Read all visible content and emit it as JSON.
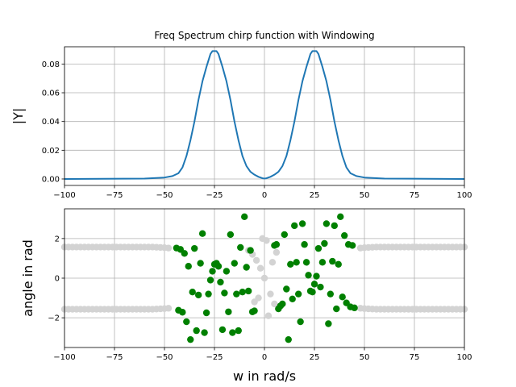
{
  "chart_data": [
    {
      "type": "line",
      "title": "Freq Spectrum chirp function with Windowing",
      "xlabel": "",
      "ylabel": "|Y|",
      "xlim": [
        -100,
        100
      ],
      "ylim": [
        -0.0045,
        0.092
      ],
      "xticks": [
        -100,
        -75,
        -50,
        -25,
        0,
        25,
        50,
        75,
        100
      ],
      "yticks": [
        0.0,
        0.02,
        0.04,
        0.06,
        0.08
      ],
      "ytick_labels": [
        "0.00",
        "0.02",
        "0.04",
        "0.06",
        "0.08"
      ],
      "grid": true,
      "series": [
        {
          "color": "#1f77b4",
          "x": [
            -100,
            -60,
            -50,
            -46,
            -43,
            -41,
            -39,
            -37,
            -35,
            -33,
            -31,
            -29,
            -27,
            -26,
            -25,
            -24,
            -23,
            -21,
            -19,
            -17,
            -15,
            -13,
            -11,
            -9,
            -7,
            -5,
            -3,
            -1,
            0,
            1,
            3,
            5,
            7,
            9,
            11,
            13,
            15,
            17,
            19,
            21,
            23,
            24,
            25,
            26,
            27,
            29,
            31,
            33,
            35,
            37,
            39,
            41,
            43,
            46,
            50,
            60,
            100
          ],
          "y": [
            0.0,
            0.0003,
            0.001,
            0.002,
            0.004,
            0.008,
            0.016,
            0.027,
            0.04,
            0.055,
            0.068,
            0.078,
            0.087,
            0.089,
            0.089,
            0.089,
            0.087,
            0.078,
            0.068,
            0.055,
            0.04,
            0.027,
            0.016,
            0.009,
            0.005,
            0.003,
            0.0015,
            0.0005,
            0.0003,
            0.0005,
            0.0015,
            0.003,
            0.005,
            0.009,
            0.016,
            0.027,
            0.04,
            0.055,
            0.068,
            0.078,
            0.087,
            0.089,
            0.089,
            0.089,
            0.087,
            0.078,
            0.068,
            0.055,
            0.04,
            0.027,
            0.016,
            0.008,
            0.004,
            0.002,
            0.001,
            0.0003,
            0.0
          ]
        }
      ]
    },
    {
      "type": "scatter",
      "title": "",
      "xlabel": "w in rad/s",
      "ylabel": "angle in rad",
      "xlim": [
        -100,
        100
      ],
      "ylim": [
        -3.5,
        3.5
      ],
      "xticks": [
        -100,
        -75,
        -50,
        -25,
        0,
        25,
        50,
        75,
        100
      ],
      "yticks": [
        -2,
        0,
        2
      ],
      "ytick_labels": [
        "−2",
        "0",
        "2"
      ],
      "grid": true,
      "series": [
        {
          "color": "#d3d3d3",
          "points": [
            [
              -100,
              1.57
            ],
            [
              -98,
              1.57
            ],
            [
              -96,
              1.57
            ],
            [
              -94,
              1.57
            ],
            [
              -92,
              1.57
            ],
            [
              -90,
              1.57
            ],
            [
              -88,
              1.57
            ],
            [
              -86,
              1.57
            ],
            [
              -84,
              1.57
            ],
            [
              -82,
              1.57
            ],
            [
              -80,
              1.57
            ],
            [
              -78,
              1.57
            ],
            [
              -76,
              1.57
            ],
            [
              -74,
              1.57
            ],
            [
              -72,
              1.57
            ],
            [
              -70,
              1.57
            ],
            [
              -68,
              1.57
            ],
            [
              -66,
              1.57
            ],
            [
              -64,
              1.57
            ],
            [
              -62,
              1.57
            ],
            [
              -60,
              1.57
            ],
            [
              -58,
              1.57
            ],
            [
              -56,
              1.57
            ],
            [
              -54,
              1.56
            ],
            [
              -52,
              1.55
            ],
            [
              -50,
              1.54
            ],
            [
              -48,
              1.52
            ],
            [
              -100,
              -1.57
            ],
            [
              -98,
              -1.57
            ],
            [
              -96,
              -1.57
            ],
            [
              -94,
              -1.57
            ],
            [
              -92,
              -1.57
            ],
            [
              -90,
              -1.57
            ],
            [
              -88,
              -1.57
            ],
            [
              -86,
              -1.57
            ],
            [
              -84,
              -1.57
            ],
            [
              -82,
              -1.57
            ],
            [
              -80,
              -1.57
            ],
            [
              -78,
              -1.57
            ],
            [
              -76,
              -1.57
            ],
            [
              -74,
              -1.57
            ],
            [
              -72,
              -1.57
            ],
            [
              -70,
              -1.57
            ],
            [
              -68,
              -1.57
            ],
            [
              -66,
              -1.57
            ],
            [
              -64,
              -1.57
            ],
            [
              -62,
              -1.57
            ],
            [
              -60,
              -1.57
            ],
            [
              -58,
              -1.57
            ],
            [
              -56,
              -1.57
            ],
            [
              -54,
              -1.56
            ],
            [
              -52,
              -1.55
            ],
            [
              -50,
              -1.54
            ],
            [
              -48,
              -1.52
            ],
            [
              48,
              1.52
            ],
            [
              50,
              1.54
            ],
            [
              52,
              1.55
            ],
            [
              54,
              1.56
            ],
            [
              56,
              1.57
            ],
            [
              58,
              1.57
            ],
            [
              60,
              1.57
            ],
            [
              62,
              1.57
            ],
            [
              64,
              1.57
            ],
            [
              66,
              1.57
            ],
            [
              68,
              1.57
            ],
            [
              70,
              1.57
            ],
            [
              72,
              1.57
            ],
            [
              74,
              1.57
            ],
            [
              76,
              1.57
            ],
            [
              78,
              1.57
            ],
            [
              80,
              1.57
            ],
            [
              82,
              1.57
            ],
            [
              84,
              1.57
            ],
            [
              86,
              1.57
            ],
            [
              88,
              1.57
            ],
            [
              90,
              1.57
            ],
            [
              92,
              1.57
            ],
            [
              94,
              1.57
            ],
            [
              96,
              1.57
            ],
            [
              98,
              1.57
            ],
            [
              100,
              1.57
            ],
            [
              48,
              -1.52
            ],
            [
              50,
              -1.54
            ],
            [
              52,
              -1.55
            ],
            [
              54,
              -1.56
            ],
            [
              56,
              -1.57
            ],
            [
              58,
              -1.57
            ],
            [
              60,
              -1.57
            ],
            [
              62,
              -1.57
            ],
            [
              64,
              -1.57
            ],
            [
              66,
              -1.57
            ],
            [
              68,
              -1.57
            ],
            [
              70,
              -1.57
            ],
            [
              72,
              -1.57
            ],
            [
              74,
              -1.57
            ],
            [
              76,
              -1.57
            ],
            [
              78,
              -1.57
            ],
            [
              80,
              -1.57
            ],
            [
              82,
              -1.57
            ],
            [
              84,
              -1.57
            ],
            [
              86,
              -1.57
            ],
            [
              88,
              -1.57
            ],
            [
              90,
              -1.57
            ],
            [
              92,
              -1.57
            ],
            [
              94,
              -1.57
            ],
            [
              96,
              -1.57
            ],
            [
              98,
              -1.57
            ],
            [
              100,
              -1.57
            ],
            [
              -6,
              1.2
            ],
            [
              -5,
              -1.2
            ],
            [
              -4,
              0.9
            ],
            [
              -3,
              -1.0
            ],
            [
              -2,
              0.5
            ],
            [
              -1,
              2.0
            ],
            [
              0,
              0.0
            ],
            [
              1,
              1.9
            ],
            [
              2,
              -1.9
            ],
            [
              3,
              -0.8
            ],
            [
              4,
              0.8
            ],
            [
              5,
              -1.3
            ],
            [
              6,
              1.3
            ],
            [
              -8,
              1.4
            ],
            [
              8,
              -1.4
            ]
          ]
        },
        {
          "color": "#008000",
          "points": [
            [
              -44,
              1.52
            ],
            [
              -43,
              -1.62
            ],
            [
              -42,
              1.45
            ],
            [
              -41,
              -1.72
            ],
            [
              -40,
              1.25
            ],
            [
              -39,
              -2.2
            ],
            [
              -38,
              0.6
            ],
            [
              -37,
              -3.1
            ],
            [
              -36,
              -0.7
            ],
            [
              -35,
              1.5
            ],
            [
              -34,
              -2.65
            ],
            [
              -33,
              -0.85
            ],
            [
              -32,
              0.75
            ],
            [
              -31,
              2.25
            ],
            [
              -30,
              -2.75
            ],
            [
              -29,
              -1.75
            ],
            [
              -28,
              -0.8
            ],
            [
              -27,
              -0.1
            ],
            [
              -26,
              0.35
            ],
            [
              -25,
              0.7
            ],
            [
              -24,
              0.75
            ],
            [
              -23,
              0.6
            ],
            [
              -22,
              -0.2
            ],
            [
              -21,
              -2.6
            ],
            [
              -20,
              -0.75
            ],
            [
              -19,
              0.35
            ],
            [
              -18,
              -1.7
            ],
            [
              -17,
              2.2
            ],
            [
              -16,
              -2.75
            ],
            [
              -15,
              0.75
            ],
            [
              -14,
              -0.8
            ],
            [
              -13,
              -2.65
            ],
            [
              -12,
              1.55
            ],
            [
              -11,
              -0.7
            ],
            [
              -10,
              3.1
            ],
            [
              -9,
              0.55
            ],
            [
              -8,
              -0.65
            ],
            [
              -7,
              1.4
            ],
            [
              -6,
              -1.7
            ],
            [
              -5,
              -1.65
            ],
            [
              5,
              1.65
            ],
            [
              6,
              1.7
            ],
            [
              7,
              -1.55
            ],
            [
              8,
              -1.4
            ],
            [
              9,
              -1.3
            ],
            [
              10,
              2.2
            ],
            [
              11,
              -0.55
            ],
            [
              12,
              -3.1
            ],
            [
              13,
              0.7
            ],
            [
              14,
              -1.05
            ],
            [
              15,
              2.65
            ],
            [
              16,
              0.8
            ],
            [
              17,
              -0.8
            ],
            [
              18,
              -2.2
            ],
            [
              19,
              2.75
            ],
            [
              20,
              1.7
            ],
            [
              21,
              0.8
            ],
            [
              22,
              0.15
            ],
            [
              23,
              -0.65
            ],
            [
              24,
              -0.7
            ],
            [
              25,
              -0.3
            ],
            [
              26,
              0.1
            ],
            [
              27,
              1.5
            ],
            [
              28,
              -0.45
            ],
            [
              29,
              0.8
            ],
            [
              30,
              1.75
            ],
            [
              31,
              2.75
            ],
            [
              32,
              -2.3
            ],
            [
              33,
              -0.8
            ],
            [
              34,
              0.85
            ],
            [
              35,
              2.65
            ],
            [
              36,
              -1.55
            ],
            [
              37,
              0.7
            ],
            [
              38,
              3.1
            ],
            [
              39,
              -0.95
            ],
            [
              40,
              2.15
            ],
            [
              41,
              -1.25
            ],
            [
              42,
              1.7
            ],
            [
              43,
              -1.45
            ],
            [
              44,
              1.65
            ],
            [
              45,
              -1.5
            ]
          ]
        }
      ]
    }
  ]
}
